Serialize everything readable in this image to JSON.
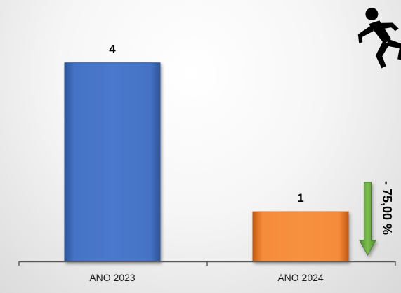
{
  "chart_data": {
    "type": "bar",
    "categories": [
      "ANO 2023",
      "ANO 2024"
    ],
    "values": [
      4,
      1
    ],
    "data_labels": [
      "4",
      "1"
    ],
    "ylim": [
      0,
      4.25
    ],
    "grid": false,
    "legend": "none",
    "bar_colors": [
      "#4472C4",
      "#F58B3A"
    ],
    "annotation": {
      "text": "- 75,00 %",
      "arrow": "down",
      "arrow_color": "#70AD47"
    },
    "icon": "running-person-icon"
  }
}
